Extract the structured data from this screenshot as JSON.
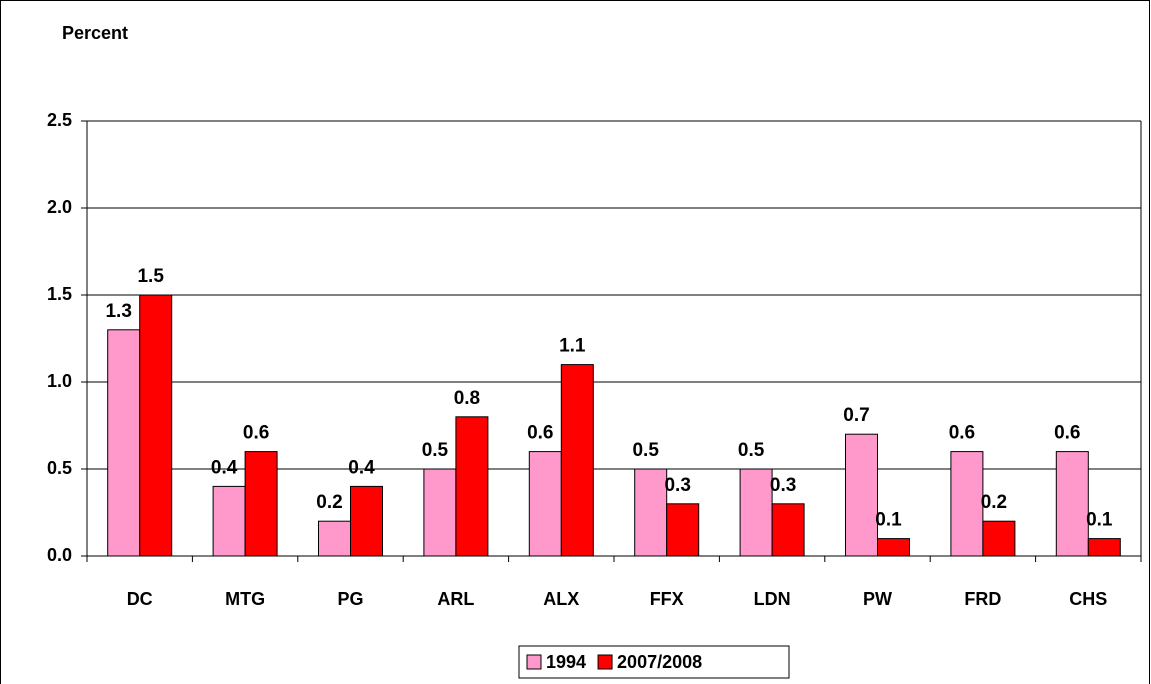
{
  "chart_data": {
    "type": "bar",
    "y_label": "Percent",
    "categories": [
      "DC",
      "MTG",
      "PG",
      "ARL",
      "ALX",
      "FFX",
      "LDN",
      "PW",
      "FRD",
      "CHS"
    ],
    "series": [
      {
        "name": "1994",
        "color": "#ff99cc",
        "values": [
          1.3,
          0.4,
          0.2,
          0.5,
          0.6,
          0.5,
          0.5,
          0.7,
          0.6,
          0.6
        ]
      },
      {
        "name": "2007/2008",
        "color": "#ff0000",
        "values": [
          1.5,
          0.6,
          0.4,
          0.8,
          1.1,
          0.3,
          0.3,
          0.1,
          0.2,
          0.1
        ]
      }
    ],
    "ylim": [
      0,
      2.5
    ],
    "yticks": [
      {
        "value": 0,
        "label": "0.0"
      },
      {
        "value": 0.5,
        "label": "0.5"
      },
      {
        "value": 1,
        "label": "1.0"
      },
      {
        "value": 1.5,
        "label": "1.5"
      },
      {
        "value": 2,
        "label": "2.0"
      },
      {
        "value": 2.5,
        "label": "2.5"
      }
    ],
    "grid": true,
    "legend": "bottom"
  }
}
